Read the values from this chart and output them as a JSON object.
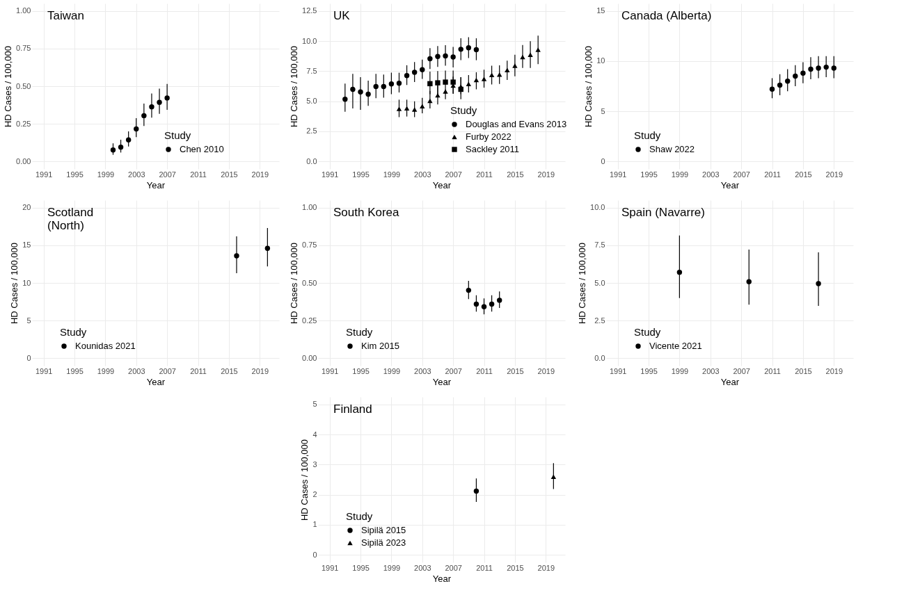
{
  "chart_data": [
    {
      "type": "scatter",
      "title": "Taiwan",
      "xlabel": "Year",
      "ylabel": "HD Cases / 100,000",
      "legend_title": "Study",
      "legend": "bottom right",
      "grid": true,
      "xlim": [
        1989.5,
        2021.5
      ],
      "xticks": [
        1991,
        1995,
        1999,
        2003,
        2007,
        2011,
        2015,
        2019
      ],
      "ylim": [
        -0.05,
        1.05
      ],
      "yticks": [
        {
          "value": 0,
          "label": "0.00"
        },
        0.25,
        {
          "value": 0.5,
          "label": "0.50"
        },
        0.75,
        {
          "value": 1,
          "label": "1.00"
        }
      ],
      "series": [
        {
          "name": "Chen 2010",
          "color": "#000000",
          "marker": "circle",
          "x": [
            2000,
            2001,
            2002,
            2003,
            2004,
            2005,
            2006,
            2007
          ],
          "values": [
            0.076,
            0.095,
            0.143,
            0.216,
            0.304,
            0.363,
            0.393,
            0.422
          ],
          "errors": [
            [
              0.044,
              0.12
            ],
            [
              0.059,
              0.144
            ],
            [
              0.099,
              0.2
            ],
            [
              0.162,
              0.287
            ],
            [
              0.235,
              0.385
            ],
            [
              0.291,
              0.451
            ],
            [
              0.316,
              0.484
            ],
            [
              0.343,
              0.515
            ]
          ]
        }
      ]
    },
    {
      "type": "scatter",
      "title": "Scotland\n(North)",
      "xlabel": "Year",
      "ylabel": "HD Cases / 100,000",
      "legend_title": "Study",
      "legend": "bottom left",
      "grid": true,
      "xlim": [
        1989.5,
        2021.5
      ],
      "xticks": [
        1991,
        1995,
        1999,
        2003,
        2007,
        2011,
        2015,
        2019
      ],
      "ylim": [
        -1,
        21
      ],
      "yticks": [
        0,
        5,
        10,
        15,
        20
      ],
      "series": [
        {
          "name": "Kounidas 2021",
          "color": "#000000",
          "marker": "circle",
          "x": [
            2016,
            2020
          ],
          "values": [
            13.6,
            14.6
          ],
          "errors": [
            [
              11.3,
              16.2
            ],
            [
              12.2,
              17.3
            ]
          ]
        }
      ]
    },
    {
      "type": "scatter",
      "title": "UK",
      "xlabel": "Year",
      "ylabel": "HD Cases / 100,000",
      "legend_title": "Study",
      "legend": "bottom right",
      "grid": true,
      "xlim": [
        1989.5,
        2021.5
      ],
      "xticks": [
        1991,
        1995,
        1999,
        2003,
        2007,
        2011,
        2015,
        2019
      ],
      "ylim": [
        -0.625,
        13.125
      ],
      "yticks": [
        {
          "value": 0,
          "label": "0.0"
        },
        2.5,
        {
          "value": 5,
          "label": "5.0"
        },
        7.5,
        {
          "value": 10,
          "label": "10.0"
        },
        12.5
      ],
      "series": [
        {
          "name": "Douglas and Evans 2013",
          "color": "#000000",
          "marker": "circle",
          "x": [
            1993,
            1994,
            1995,
            1996,
            1997,
            1998,
            1999,
            2000,
            2001,
            2002,
            2003,
            2004,
            2005,
            2006,
            2007,
            2008,
            2009,
            2010
          ],
          "values": [
            5.17,
            5.99,
            5.77,
            5.59,
            6.22,
            6.22,
            6.44,
            6.5,
            7.13,
            7.41,
            7.62,
            8.53,
            8.72,
            8.77,
            8.68,
            9.32,
            9.44,
            9.28
          ],
          "errors": [
            [
              4.13,
              6.46
            ],
            [
              4.4,
              7.28
            ],
            [
              4.28,
              7.0
            ],
            [
              4.62,
              6.71
            ],
            [
              5.26,
              7.28
            ],
            [
              5.29,
              7.22
            ],
            [
              5.59,
              7.37
            ],
            [
              5.73,
              7.37
            ],
            [
              6.35,
              7.99
            ],
            [
              6.59,
              8.26
            ],
            [
              6.86,
              8.46
            ],
            [
              7.68,
              9.41
            ],
            [
              7.86,
              9.59
            ],
            [
              7.95,
              9.66
            ],
            [
              7.81,
              9.52
            ],
            [
              8.41,
              10.23
            ],
            [
              8.59,
              10.32
            ],
            [
              8.41,
              10.23
            ]
          ]
        },
        {
          "name": "Furby 2022",
          "color": "#000000",
          "marker": "triangle",
          "x": [
            2000,
            2001,
            2002,
            2003,
            2004,
            2005,
            2006,
            2007,
            2008,
            2009,
            2010,
            2011,
            2012,
            2013,
            2014,
            2015,
            2016,
            2017,
            2018
          ],
          "values": [
            4.37,
            4.42,
            4.31,
            4.59,
            5.04,
            5.49,
            5.82,
            6.31,
            6.22,
            6.44,
            6.77,
            6.86,
            7.19,
            7.22,
            7.59,
            7.95,
            8.68,
            8.86,
            9.28
          ],
          "errors": [
            [
              3.68,
              5.13
            ],
            [
              3.73,
              5.13
            ],
            [
              3.68,
              4.99
            ],
            [
              4.0,
              5.28
            ],
            [
              4.4,
              5.86
            ],
            [
              4.73,
              6.31
            ],
            [
              5.17,
              5.82
            ],
            [
              5.64,
              7.04
            ],
            [
              5.59,
              7.0
            ],
            [
              5.73,
              7.17
            ],
            [
              5.99,
              7.41
            ],
            [
              6.13,
              7.62
            ],
            [
              6.4,
              7.95
            ],
            [
              6.44,
              7.99
            ],
            [
              6.77,
              8.37
            ],
            [
              7.08,
              8.86
            ],
            [
              7.77,
              9.68
            ],
            [
              7.77,
              9.99
            ],
            [
              8.08,
              10.46
            ]
          ]
        },
        {
          "name": "Sackley 2011",
          "color": "#000000",
          "marker": "square",
          "x": [
            2004,
            2005,
            2006,
            2007,
            2008
          ],
          "values": [
            6.46,
            6.53,
            6.59,
            6.59,
            5.99
          ],
          "errors": [
            [
              5.59,
              7.46
            ],
            [
              5.59,
              7.5
            ],
            [
              5.62,
              7.55
            ],
            [
              5.62,
              7.55
            ],
            [
              5.17,
              7.0
            ]
          ]
        }
      ]
    },
    {
      "type": "scatter",
      "title": "South Korea",
      "xlabel": "Year",
      "ylabel": "HD Cases / 100,000",
      "legend_title": "Study",
      "legend": "bottom left",
      "grid": true,
      "xlim": [
        1989.5,
        2021.5
      ],
      "xticks": [
        1991,
        1995,
        1999,
        2003,
        2007,
        2011,
        2015,
        2019
      ],
      "ylim": [
        -0.05,
        1.05
      ],
      "yticks": [
        {
          "value": 0,
          "label": "0.00"
        },
        0.25,
        {
          "value": 0.5,
          "label": "0.50"
        },
        0.75,
        {
          "value": 1,
          "label": "1.00"
        }
      ],
      "series": [
        {
          "name": "Kim 2015",
          "color": "#000000",
          "marker": "circle",
          "x": [
            2009,
            2010,
            2011,
            2012,
            2013
          ],
          "values": [
            0.451,
            0.359,
            0.342,
            0.359,
            0.385
          ],
          "errors": [
            [
              0.392,
              0.514
            ],
            [
              0.309,
              0.418
            ],
            [
              0.291,
              0.397
            ],
            [
              0.309,
              0.418
            ],
            [
              0.334,
              0.443
            ]
          ]
        }
      ]
    },
    {
      "type": "scatter",
      "title": "Finland",
      "xlabel": "Year",
      "ylabel": "HD Cases / 100,000",
      "legend_title": "Study",
      "legend": "bottom left",
      "grid": true,
      "xlim": [
        1989.5,
        2021.5
      ],
      "xticks": [
        1991,
        1995,
        1999,
        2003,
        2007,
        2011,
        2015,
        2019
      ],
      "ylim": [
        -0.25,
        5.25
      ],
      "yticks": [
        0,
        1,
        2,
        3,
        4,
        5
      ],
      "series": [
        {
          "name": "Sipilä 2015",
          "color": "#000000",
          "marker": "circle",
          "x": [
            2010
          ],
          "values": [
            2.12
          ],
          "errors": [
            [
              1.76,
              2.54
            ]
          ]
        },
        {
          "name": "Sipilä 2023",
          "color": "#000000",
          "marker": "triangle",
          "x": [
            2020
          ],
          "values": [
            2.6
          ],
          "errors": [
            [
              2.19,
              3.05
            ]
          ]
        }
      ]
    },
    {
      "type": "scatter",
      "title": "Canada (Alberta)",
      "xlabel": "Year",
      "ylabel": "HD Cases / 100,000",
      "legend_title": "Study",
      "legend": "bottom left",
      "grid": true,
      "xlim": [
        1989.5,
        2021.5
      ],
      "xticks": [
        1991,
        1995,
        1999,
        2003,
        2007,
        2011,
        2015,
        2019
      ],
      "ylim": [
        -0.75,
        15.75
      ],
      "yticks": [
        0,
        5,
        10,
        15
      ],
      "series": [
        {
          "name": "Shaw 2022",
          "color": "#000000",
          "marker": "circle",
          "x": [
            2011,
            2012,
            2013,
            2014,
            2015,
            2016,
            2017,
            2018,
            2019
          ],
          "values": [
            7.2,
            7.6,
            8.0,
            8.5,
            8.8,
            9.2,
            9.3,
            9.4,
            9.3
          ],
          "errors": [
            [
              6.3,
              8.3
            ],
            [
              6.6,
              8.7
            ],
            [
              7.0,
              9.2
            ],
            [
              7.5,
              9.6
            ],
            [
              7.8,
              9.9
            ],
            [
              8.2,
              10.4
            ],
            [
              8.3,
              10.5
            ],
            [
              8.4,
              10.5
            ],
            [
              8.3,
              10.5
            ]
          ]
        }
      ]
    },
    {
      "type": "scatter",
      "title": "Spain (Navarre)",
      "xlabel": "Year",
      "ylabel": "HD Cases / 100,000",
      "legend_title": "Study",
      "legend": "bottom left",
      "grid": true,
      "xlim": [
        1989.5,
        2021.5
      ],
      "xticks": [
        1991,
        1995,
        1999,
        2003,
        2007,
        2011,
        2015,
        2019
      ],
      "ylim": [
        -0.5,
        10.5
      ],
      "yticks": [
        {
          "value": 0,
          "label": "0.0"
        },
        2.5,
        {
          "value": 5,
          "label": "5.0"
        },
        7.5,
        {
          "value": 10,
          "label": "10.0"
        }
      ],
      "series": [
        {
          "name": "Vicente 2021",
          "color": "#000000",
          "marker": "circle",
          "x": [
            1999,
            2008,
            2017
          ],
          "values": [
            5.71,
            5.08,
            4.95
          ],
          "errors": [
            [
              4.0,
              8.16
            ],
            [
              3.56,
              7.22
            ],
            [
              3.47,
              7.03
            ]
          ]
        }
      ]
    }
  ]
}
